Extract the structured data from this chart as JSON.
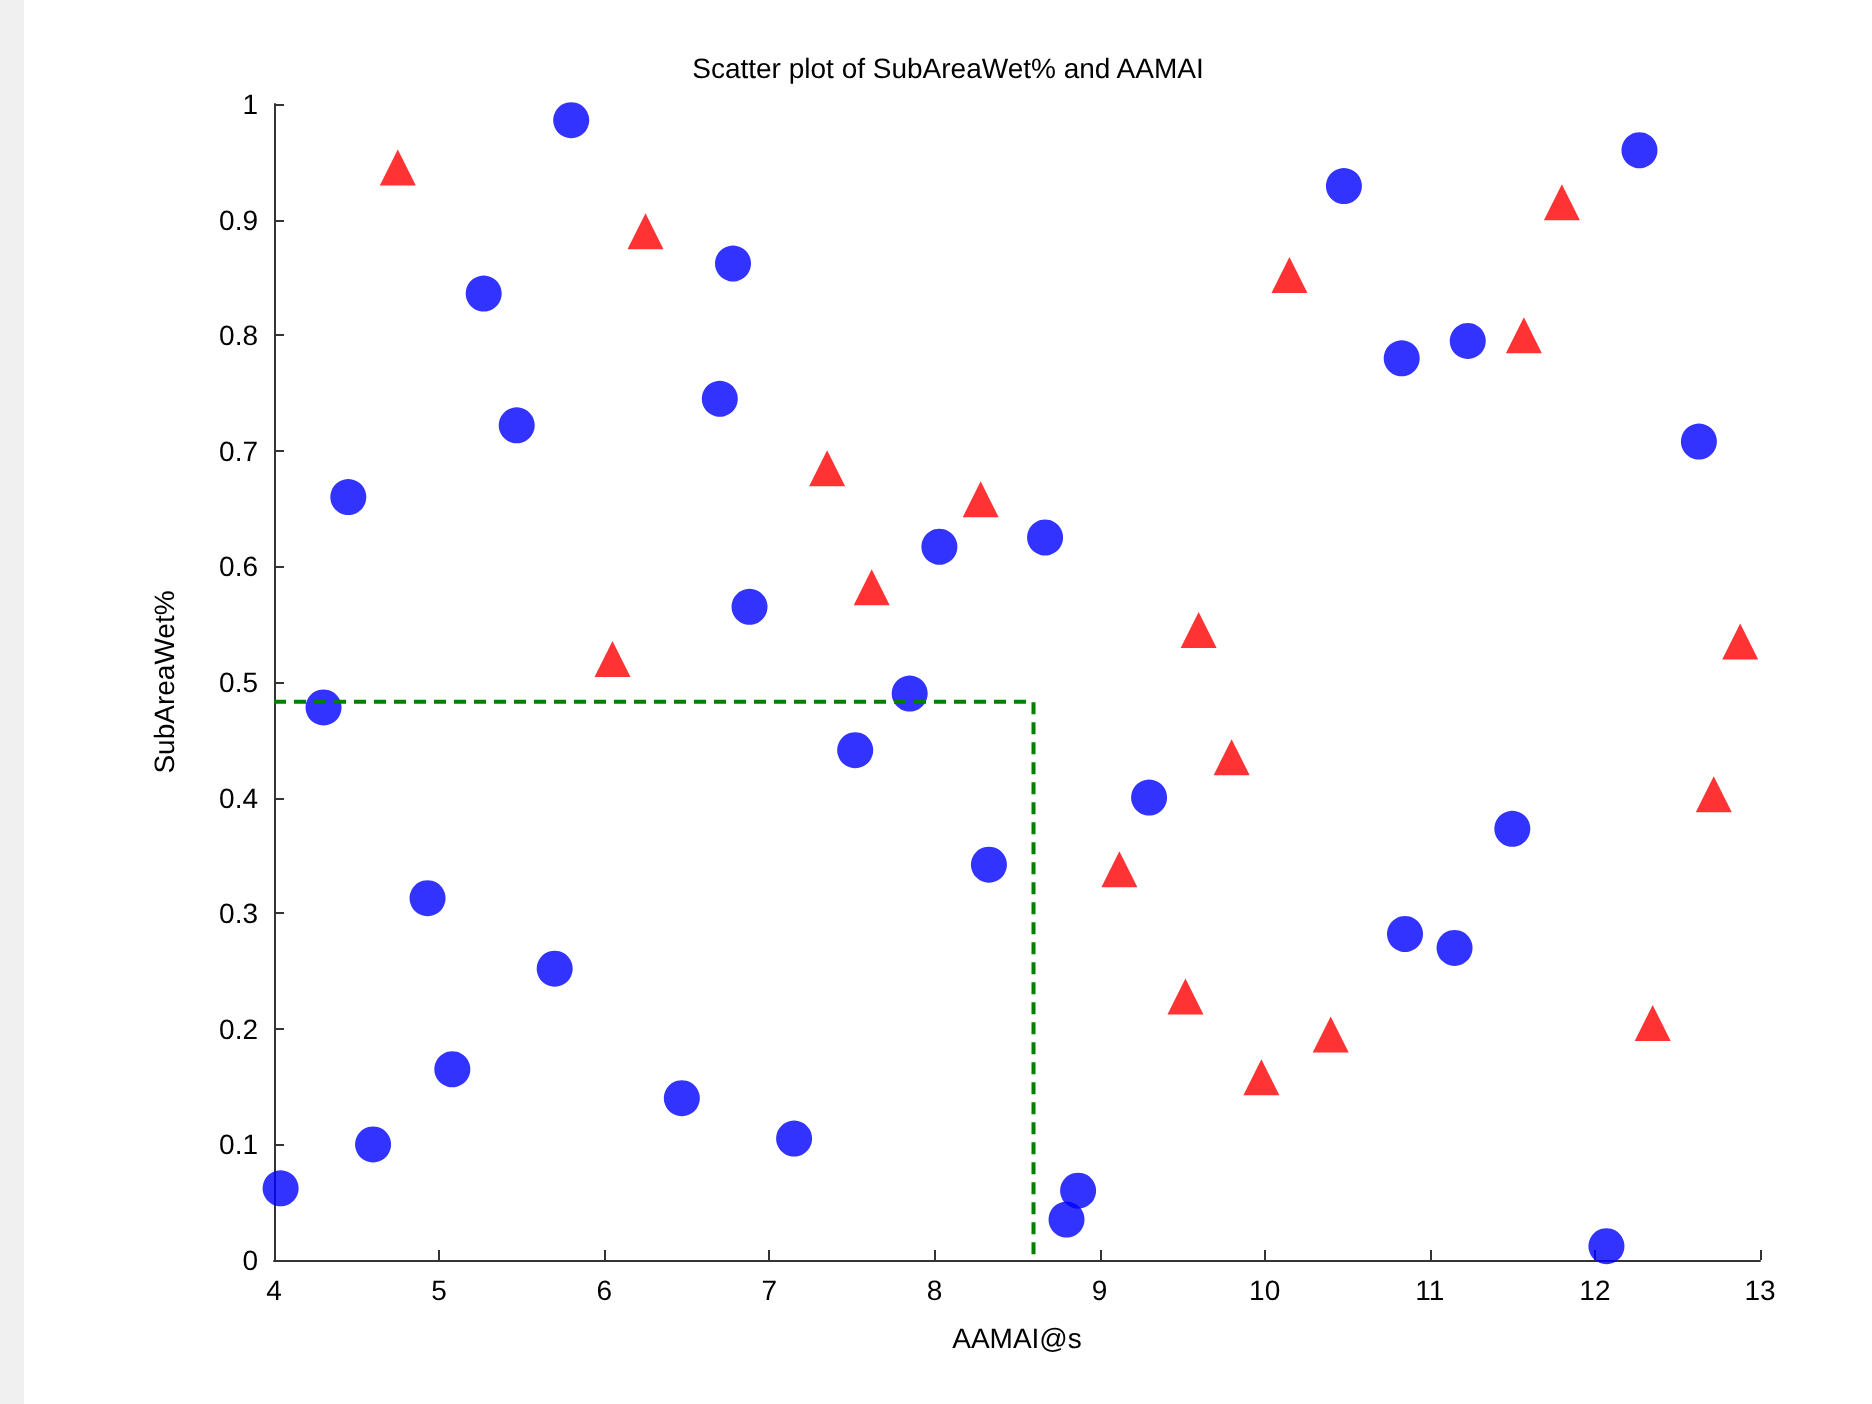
{
  "chart_data": {
    "type": "scatter",
    "title": "Scatter plot of SubAreaWet% and AAMAI",
    "xlabel": "AAMAI@s",
    "ylabel": "SubAreaWet%",
    "xlim": [
      4,
      13
    ],
    "xticks": [
      4,
      5,
      6,
      7,
      8,
      9,
      10,
      11,
      12,
      13
    ],
    "ylim": [
      0,
      1
    ],
    "yticks": [
      0,
      0.1,
      0.2,
      0.3,
      0.4,
      0.5,
      0.6,
      0.7,
      0.8,
      0.9,
      1
    ],
    "series": [
      {
        "color": "#0000ff",
        "marker": "circle",
        "x": [
          4.04,
          4.3,
          4.45,
          4.6,
          4.93,
          5.08,
          5.27,
          5.47,
          5.7,
          5.8,
          6.47,
          6.7,
          6.78,
          6.88,
          7.15,
          7.52,
          7.85,
          8.03,
          8.33,
          8.67,
          8.8,
          8.87,
          9.3,
          10.48,
          10.83,
          10.85,
          11.15,
          11.23,
          11.5,
          12.07,
          12.27,
          12.63
        ],
        "values": [
          0.062,
          0.478,
          0.66,
          0.1,
          0.313,
          0.165,
          0.836,
          0.722,
          0.252,
          0.986,
          0.14,
          0.745,
          0.862,
          0.565,
          0.105,
          0.441,
          0.49,
          0.617,
          0.342,
          0.625,
          0.035,
          0.06,
          0.4,
          0.929,
          0.78,
          0.282,
          0.27,
          0.795,
          0.373,
          0.012,
          0.96,
          0.708
        ]
      },
      {
        "color": "#ff0000",
        "marker": "triangle",
        "x": [
          4.75,
          6.05,
          6.25,
          7.35,
          7.62,
          8.28,
          9.12,
          9.52,
          9.6,
          9.8,
          9.98,
          10.15,
          10.4,
          11.57,
          11.8,
          12.35,
          12.72,
          12.88
        ],
        "values": [
          0.945,
          0.52,
          0.89,
          0.685,
          0.582,
          0.658,
          0.338,
          0.228,
          0.545,
          0.435,
          0.158,
          0.852,
          0.195,
          0.8,
          0.915,
          0.205,
          0.403,
          0.535
        ]
      },
      {
        "type": "line",
        "color": "#008000",
        "marker": "none",
        "line_style": "dashed",
        "x": [
          4,
          8.6,
          8.6
        ],
        "values": [
          0.483,
          0.483,
          0
        ]
      }
    ]
  }
}
